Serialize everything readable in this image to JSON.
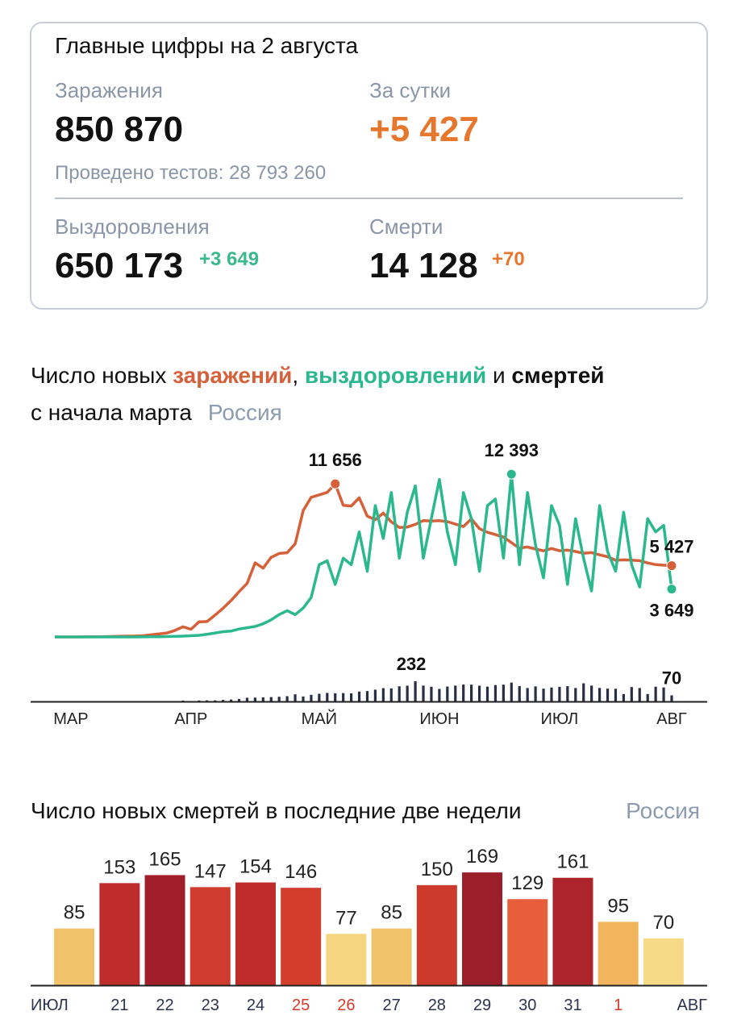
{
  "summary": {
    "title": "Главные цифры на 2 августа",
    "infections": {
      "label": "Заражения",
      "value": "850 870"
    },
    "daily": {
      "label": "За сутки",
      "value": "+5 427"
    },
    "tests": "Проведено тестов: 28 793 260",
    "recoveries": {
      "label": "Выздоровления",
      "value": "650 173",
      "delta": "+3 649"
    },
    "deaths": {
      "label": "Смерти",
      "value": "14 128",
      "delta": "+70"
    }
  },
  "chart_data": [
    {
      "type": "line",
      "title": [
        "Число новых ",
        "заражений",
        ", ",
        "выздоровлений",
        " и ",
        "смертей"
      ],
      "subtitle": "с начала марта",
      "region": "Россия",
      "categories": [
        null,
        null,
        "МАР",
        null,
        null,
        null,
        null,
        null,
        null,
        null,
        null,
        null,
        null,
        null,
        null,
        null,
        null,
        "АПР",
        null,
        null,
        null,
        null,
        null,
        null,
        null,
        null,
        null,
        null,
        null,
        null,
        null,
        null,
        null,
        "МАЙ",
        null,
        null,
        null,
        null,
        null,
        null,
        null,
        null,
        null,
        null,
        null,
        null,
        null,
        null,
        "ИЮН",
        null,
        null,
        null,
        null,
        null,
        null,
        null,
        null,
        null,
        null,
        null,
        null,
        null,
        null,
        "ИЮЛ",
        null,
        null,
        null,
        null,
        null,
        null,
        null,
        null,
        null,
        null,
        null,
        null,
        null,
        "АВГ"
      ],
      "ylim": [
        0,
        14000
      ],
      "y2lim": [
        0,
        250
      ],
      "series": [
        {
          "name": "заражения",
          "color": "#d5603a",
          "values": [
            0,
            0,
            1,
            2,
            5,
            10,
            20,
            30,
            40,
            60,
            70,
            90,
            160,
            230,
            300,
            500,
            771,
            582,
            1154,
            1175,
            1667,
            2186,
            2774,
            3448,
            4070,
            5642,
            5236,
            6060,
            6361,
            6411,
            7099,
            9623,
            10633,
            10817,
            11012,
            11656,
            10028,
            9974,
            10598,
            9200,
            8926,
            9434,
            8764,
            8338,
            8371,
            8572,
            8863,
            8831,
            8855,
            8779,
            8595,
            8404,
            8987,
            8246,
            7972,
            7790,
            7600,
            7176,
            6760,
            6852,
            6693,
            6556,
            6736,
            6562,
            6615,
            6509,
            6368,
            6422,
            6248,
            6109,
            5842,
            5871,
            5848,
            5811,
            5635,
            5509,
            5462,
            5427
          ],
          "value_labels": [
            null,
            null,
            null,
            null,
            null,
            null,
            null,
            null,
            null,
            null,
            null,
            null,
            null,
            null,
            null,
            null,
            null,
            null,
            null,
            null,
            null,
            null,
            null,
            null,
            null,
            null,
            null,
            null,
            null,
            null,
            null,
            null,
            null,
            null,
            null,
            "11 656",
            null,
            null,
            null,
            null,
            null,
            null,
            null,
            null,
            null,
            null,
            null,
            null,
            null,
            null,
            null,
            null,
            null,
            null,
            null,
            null,
            null,
            null,
            null,
            null,
            null,
            null,
            null,
            null,
            null,
            null,
            null,
            null,
            null,
            null,
            null,
            null,
            null,
            null,
            null,
            null,
            null,
            "5 427"
          ]
        },
        {
          "name": "выздоровления",
          "color": "#2cb88e",
          "values": [
            0,
            0,
            0,
            0,
            0,
            0,
            0,
            0,
            0,
            0,
            0,
            5,
            10,
            20,
            30,
            40,
            60,
            90,
            120,
            200,
            300,
            400,
            450,
            600,
            700,
            800,
            1000,
            1300,
            1700,
            2000,
            1700,
            2200,
            3000,
            5500,
            5800,
            4000,
            6000,
            5500,
            8000,
            5000,
            10000,
            7500,
            11000,
            6000,
            9500,
            11500,
            6000,
            9000,
            12000,
            8000,
            5500,
            11000,
            9000,
            5000,
            10000,
            10500,
            6000,
            12393,
            5500,
            11000,
            7000,
            4500,
            10000,
            8500,
            4000,
            9000,
            6000,
            3500,
            10000,
            6500,
            5000,
            9500,
            5500,
            3800,
            9000,
            8000,
            8500,
            3649
          ],
          "value_labels": [
            null,
            null,
            null,
            null,
            null,
            null,
            null,
            null,
            null,
            null,
            null,
            null,
            null,
            null,
            null,
            null,
            null,
            null,
            null,
            null,
            null,
            null,
            null,
            null,
            null,
            null,
            null,
            null,
            null,
            null,
            null,
            null,
            null,
            null,
            null,
            null,
            null,
            null,
            null,
            null,
            null,
            null,
            null,
            null,
            null,
            null,
            null,
            null,
            null,
            null,
            null,
            null,
            null,
            null,
            null,
            null,
            null,
            "12 393",
            null,
            null,
            null,
            null,
            null,
            null,
            null,
            null,
            null,
            null,
            null,
            null,
            null,
            null,
            null,
            null,
            null,
            null,
            null,
            "3 649"
          ]
        },
        {
          "name": "смерти",
          "type": "bar",
          "axis": "y2",
          "color": "#2a2e45",
          "values": [
            0,
            0,
            0,
            0,
            0,
            0,
            0,
            0,
            0,
            0,
            1,
            1,
            2,
            3,
            4,
            5,
            9,
            4,
            11,
            13,
            12,
            18,
            22,
            28,
            42,
            44,
            47,
            50,
            54,
            60,
            82,
            57,
            76,
            88,
            98,
            94,
            96,
            93,
            113,
            119,
            135,
            153,
            150,
            174,
            181,
            232,
            182,
            169,
            144,
            171,
            182,
            194,
            193,
            181,
            170,
            188,
            193,
            216,
            176,
            154,
            173,
            147,
            160,
            168,
            175,
            154,
            208,
            182,
            155,
            147,
            146,
            85,
            165,
            154,
            85,
            169,
            161,
            70
          ],
          "value_labels": [
            null,
            null,
            null,
            null,
            null,
            null,
            null,
            null,
            null,
            null,
            null,
            null,
            null,
            null,
            null,
            null,
            null,
            null,
            null,
            null,
            null,
            null,
            null,
            null,
            null,
            null,
            null,
            null,
            null,
            null,
            null,
            null,
            null,
            null,
            null,
            null,
            null,
            null,
            null,
            null,
            null,
            null,
            null,
            null,
            null,
            "232",
            null,
            null,
            null,
            null,
            null,
            null,
            null,
            null,
            null,
            null,
            null,
            null,
            null,
            null,
            null,
            null,
            null,
            null,
            null,
            null,
            null,
            null,
            null,
            null,
            null,
            null,
            null,
            null,
            null,
            null,
            null,
            "70"
          ]
        }
      ]
    },
    {
      "type": "bar",
      "title": "Число новых смертей в последние две недели",
      "region": "Россия",
      "categories": [
        "ИЮЛ",
        "21",
        "22",
        "23",
        "24",
        "25",
        "26",
        "27",
        "28",
        "29",
        "30",
        "31",
        "1",
        "АВГ"
      ],
      "values": [
        85,
        153,
        165,
        147,
        154,
        146,
        77,
        85,
        150,
        169,
        129,
        161,
        95,
        70
      ],
      "colors": [
        "#f0c36a",
        "#be2d2c",
        "#a01f2a",
        "#cf3b2c",
        "#be2d2c",
        "#d33d2c",
        "#f5d580",
        "#f0c36a",
        "#cc3a2c",
        "#9b1e2b",
        "#e85e3a",
        "#ac252b",
        "#f1b55e",
        "#f7da88"
      ],
      "label_colors": [
        "#2b3350",
        "#2b3350",
        "#2b3350",
        "#2b3350",
        "#2b3350",
        "#d63b2a",
        "#d63b2a",
        "#2b3350",
        "#2b3350",
        "#2b3350",
        "#2b3350",
        "#2b3350",
        "#d63b2a",
        "#2b3350"
      ],
      "ylim": [
        0,
        180
      ]
    }
  ]
}
